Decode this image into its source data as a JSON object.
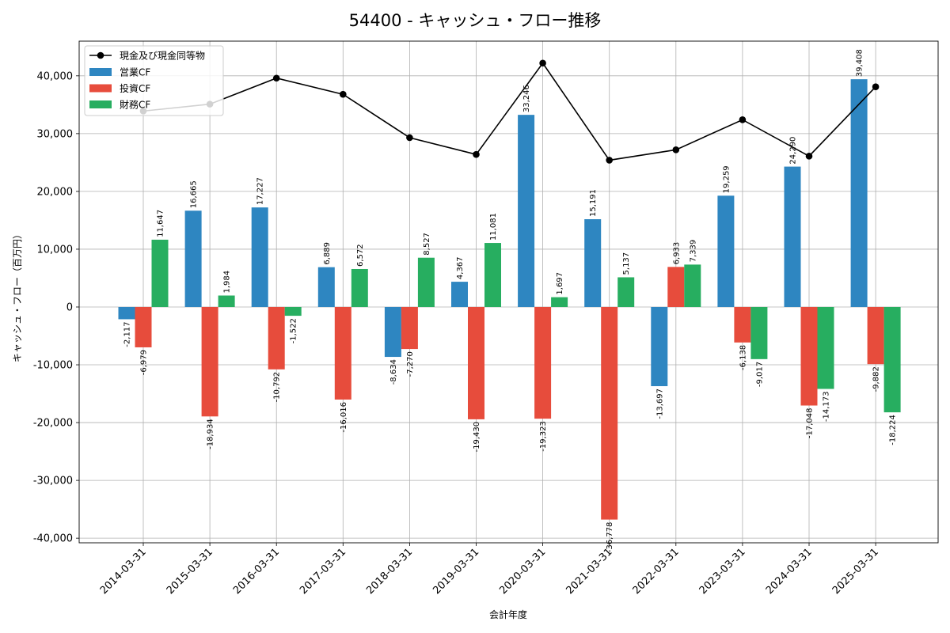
{
  "chart_data": {
    "type": "bar",
    "title": "54400 - キャッシュ・フロー推移",
    "xlabel": "会計年度",
    "ylabel": "キャッシュ・フロー（百万円）",
    "ylim": [
      -40800,
      46000
    ],
    "yticks": [
      -40000,
      -30000,
      -20000,
      -10000,
      0,
      10000,
      20000,
      30000,
      40000
    ],
    "ytick_labels": [
      "-40,000",
      "-30,000",
      "-20,000",
      "-10,000",
      "0",
      "10,000",
      "20,000",
      "30,000",
      "40,000"
    ],
    "grid": true,
    "legend_position": "top-left",
    "categories": [
      "2014-03-31",
      "2015-03-31",
      "2016-03-31",
      "2017-03-31",
      "2018-03-31",
      "2019-03-31",
      "2020-03-31",
      "2021-03-31",
      "2022-03-31",
      "2023-03-31",
      "2024-03-31",
      "2025-03-31"
    ],
    "series": [
      {
        "name": "営業CF",
        "color": "#2e86c1",
        "values": [
          -2117,
          16665,
          17227,
          6889,
          -8634,
          4367,
          33246,
          15191,
          -13697,
          19259,
          24290,
          39408
        ],
        "labels": [
          "-2,117",
          "16,665",
          "17,227",
          "6,889",
          "-8,634",
          "4,367",
          "33,246",
          "15,191",
          "-13,697",
          "19,259",
          "24,290",
          "39,408"
        ]
      },
      {
        "name": "投資CF",
        "color": "#e74c3c",
        "values": [
          -6979,
          -18934,
          -10792,
          -16016,
          -7270,
          -19430,
          -19323,
          -36778,
          6933,
          -6138,
          -17048,
          -9882
        ],
        "labels": [
          "-6,979",
          "-18,934",
          "-10,792",
          "-16,016",
          "-7,270",
          "-19,430",
          "-19,323",
          "-36,778",
          "6,933",
          "-6,138",
          "-17,048",
          "-9,882"
        ]
      },
      {
        "name": "財務CF",
        "color": "#27ae60",
        "values": [
          11647,
          1984,
          -1522,
          6572,
          8527,
          11081,
          1697,
          5137,
          7339,
          -9017,
          -14173,
          -18224
        ],
        "labels": [
          "11,647",
          "1,984",
          "-1,522",
          "6,572",
          "8,527",
          "11,081",
          "1,697",
          "5,137",
          "7,339",
          "-9,017",
          "-14,173",
          "-18,224"
        ]
      }
    ],
    "line": {
      "name": "現金及び現金同等物",
      "color": "#000000",
      "values": [
        33900,
        35100,
        39600,
        36800,
        29300,
        26400,
        42200,
        25400,
        27200,
        32400,
        26100,
        38100
      ]
    }
  }
}
